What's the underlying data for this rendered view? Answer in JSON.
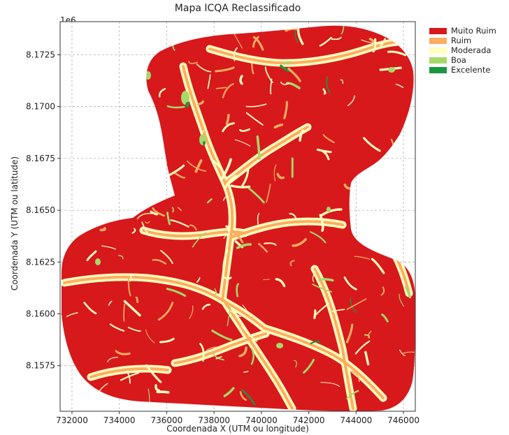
{
  "chart_data": {
    "type": "heatmap",
    "title": "Mapa ICQA Reclassificado",
    "xlabel": "Coordenada X (UTM ou longitude)",
    "ylabel": "Coordenada Y (UTM ou latitude)",
    "y_offset_label": "1e6",
    "x_ticks": [
      "732000",
      "734000",
      "736000",
      "738000",
      "740000",
      "742000",
      "744000",
      "746000"
    ],
    "y_ticks": [
      "8.1575",
      "8.1600",
      "8.1625",
      "8.1650",
      "8.1675",
      "8.1700",
      "8.1725"
    ],
    "xlim": [
      731500,
      746500
    ],
    "ylim": [
      8.1553,
      8.1741
    ],
    "grid": true,
    "legend_position": "upper right, outside plot",
    "classes": [
      {
        "label": "Muito Ruim",
        "color": "#d7191c"
      },
      {
        "label": "Ruim",
        "color": "#fdae61"
      },
      {
        "label": "Moderada",
        "color": "#ffffbf"
      },
      {
        "label": "Boa",
        "color": "#a6d96a"
      },
      {
        "label": "Excelente",
        "color": "#1a9641"
      }
    ],
    "dominant_class": "Muito Ruim"
  }
}
